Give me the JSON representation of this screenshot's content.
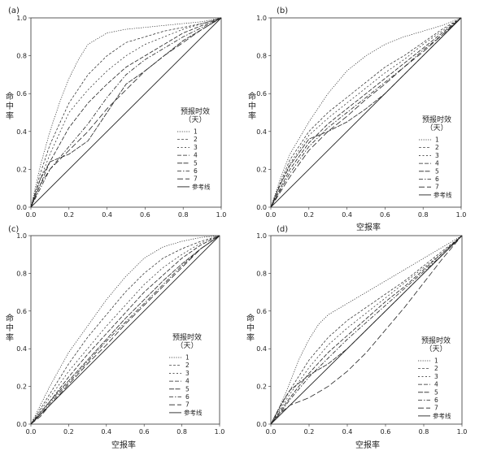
{
  "chart_data": [
    {
      "panel": "(a)",
      "type": "line",
      "xlabel": "",
      "ylabel": "命中率",
      "xlim": [
        0,
        1
      ],
      "ylim": [
        0,
        1
      ],
      "xticks": [
        "0.0",
        "0.2",
        "0.4",
        "0.6",
        "0.8",
        "1.0"
      ],
      "yticks": [
        "0.0",
        "0.2",
        "0.4",
        "0.6",
        "0.8",
        "1.0"
      ],
      "legend_title": "预报时效（天）",
      "series": [
        {
          "name": "1",
          "x": [
            0,
            0.05,
            0.1,
            0.15,
            0.2,
            0.25,
            0.3,
            0.4,
            0.5,
            0.6,
            0.7,
            0.8,
            0.9,
            1.0
          ],
          "y": [
            0,
            0.22,
            0.4,
            0.55,
            0.68,
            0.78,
            0.86,
            0.92,
            0.94,
            0.95,
            0.96,
            0.97,
            0.98,
            1.0
          ]
        },
        {
          "name": "2",
          "x": [
            0,
            0.05,
            0.1,
            0.2,
            0.3,
            0.4,
            0.5,
            0.6,
            0.7,
            0.8,
            0.9,
            1.0
          ],
          "y": [
            0,
            0.18,
            0.33,
            0.55,
            0.7,
            0.8,
            0.87,
            0.9,
            0.93,
            0.95,
            0.97,
            1.0
          ]
        },
        {
          "name": "3",
          "x": [
            0,
            0.05,
            0.1,
            0.2,
            0.3,
            0.4,
            0.5,
            0.6,
            0.7,
            0.8,
            0.9,
            1.0
          ],
          "y": [
            0,
            0.15,
            0.28,
            0.5,
            0.62,
            0.72,
            0.8,
            0.86,
            0.9,
            0.94,
            0.97,
            1.0
          ]
        },
        {
          "name": "4",
          "x": [
            0,
            0.05,
            0.1,
            0.2,
            0.3,
            0.4,
            0.5,
            0.6,
            0.7,
            0.8,
            0.9,
            1.0
          ],
          "y": [
            0,
            0.12,
            0.24,
            0.42,
            0.55,
            0.65,
            0.74,
            0.8,
            0.86,
            0.92,
            0.96,
            1.0
          ]
        },
        {
          "name": "5",
          "x": [
            0,
            0.05,
            0.1,
            0.2,
            0.3,
            0.4,
            0.5,
            0.6,
            0.7,
            0.8,
            0.9,
            1.0
          ],
          "y": [
            0,
            0.15,
            0.24,
            0.28,
            0.35,
            0.5,
            0.65,
            0.72,
            0.8,
            0.88,
            0.94,
            1.0
          ]
        },
        {
          "name": "6",
          "x": [
            0,
            0.05,
            0.1,
            0.2,
            0.3,
            0.4,
            0.5,
            0.6,
            0.7,
            0.8,
            0.9,
            1.0
          ],
          "y": [
            0,
            0.1,
            0.2,
            0.32,
            0.44,
            0.58,
            0.7,
            0.78,
            0.84,
            0.9,
            0.95,
            1.0
          ]
        },
        {
          "name": "7",
          "x": [
            0,
            0.05,
            0.1,
            0.2,
            0.3,
            0.4,
            0.5,
            0.6,
            0.7,
            0.8,
            0.9,
            1.0
          ],
          "y": [
            0,
            0.12,
            0.2,
            0.3,
            0.4,
            0.52,
            0.62,
            0.72,
            0.8,
            0.87,
            0.94,
            1.0
          ]
        },
        {
          "name": "参考线",
          "x": [
            0,
            1
          ],
          "y": [
            0,
            1
          ]
        }
      ]
    },
    {
      "panel": "(b)",
      "type": "line",
      "xlabel": "空报率",
      "ylabel": "命中率",
      "xlim": [
        0,
        1
      ],
      "ylim": [
        0,
        1
      ],
      "xticks": [
        "0.0",
        "0.2",
        "0.4",
        "0.6",
        "0.8",
        "1.0"
      ],
      "yticks": [
        "0.0",
        "0.2",
        "0.4",
        "0.6",
        "0.8",
        "1.0"
      ],
      "legend_title": "预报时效（天）",
      "series": [
        {
          "name": "1",
          "x": [
            0,
            0.05,
            0.1,
            0.2,
            0.3,
            0.4,
            0.5,
            0.6,
            0.7,
            0.8,
            0.9,
            1.0
          ],
          "y": [
            0,
            0.15,
            0.28,
            0.45,
            0.6,
            0.72,
            0.8,
            0.86,
            0.9,
            0.93,
            0.96,
            1.0
          ]
        },
        {
          "name": "2",
          "x": [
            0,
            0.05,
            0.1,
            0.2,
            0.3,
            0.4,
            0.5,
            0.6,
            0.7,
            0.8,
            0.9,
            1.0
          ],
          "y": [
            0,
            0.13,
            0.25,
            0.4,
            0.5,
            0.58,
            0.66,
            0.74,
            0.8,
            0.87,
            0.94,
            1.0
          ]
        },
        {
          "name": "3",
          "x": [
            0,
            0.05,
            0.1,
            0.2,
            0.3,
            0.4,
            0.5,
            0.6,
            0.7,
            0.8,
            0.9,
            1.0
          ],
          "y": [
            0,
            0.12,
            0.23,
            0.38,
            0.47,
            0.55,
            0.63,
            0.71,
            0.78,
            0.86,
            0.93,
            1.0
          ]
        },
        {
          "name": "4",
          "x": [
            0,
            0.05,
            0.1,
            0.2,
            0.3,
            0.4,
            0.5,
            0.6,
            0.7,
            0.8,
            0.9,
            1.0
          ],
          "y": [
            0,
            0.1,
            0.2,
            0.34,
            0.44,
            0.52,
            0.6,
            0.68,
            0.76,
            0.84,
            0.92,
            1.0
          ]
        },
        {
          "name": "5",
          "x": [
            0,
            0.05,
            0.1,
            0.2,
            0.3,
            0.4,
            0.5,
            0.6,
            0.7,
            0.8,
            0.9,
            1.0
          ],
          "y": [
            0,
            0.12,
            0.22,
            0.36,
            0.4,
            0.45,
            0.52,
            0.6,
            0.7,
            0.8,
            0.9,
            1.0
          ]
        },
        {
          "name": "6",
          "x": [
            0,
            0.05,
            0.1,
            0.2,
            0.3,
            0.4,
            0.5,
            0.6,
            0.7,
            0.8,
            0.9,
            1.0
          ],
          "y": [
            0,
            0.09,
            0.18,
            0.32,
            0.42,
            0.5,
            0.58,
            0.66,
            0.74,
            0.83,
            0.91,
            1.0
          ]
        },
        {
          "name": "7",
          "x": [
            0,
            0.05,
            0.1,
            0.2,
            0.3,
            0.4,
            0.5,
            0.6,
            0.7,
            0.8,
            0.9,
            1.0
          ],
          "y": [
            0,
            0.08,
            0.16,
            0.3,
            0.4,
            0.48,
            0.57,
            0.65,
            0.74,
            0.82,
            0.91,
            1.0
          ]
        },
        {
          "name": "参考线",
          "x": [
            0,
            1
          ],
          "y": [
            0,
            1
          ]
        }
      ]
    },
    {
      "panel": "(c)",
      "type": "line",
      "xlabel": "空报率",
      "ylabel": "命中率",
      "xlim": [
        0,
        1
      ],
      "ylim": [
        0,
        1
      ],
      "xticks": [
        "0.0",
        "0.2",
        "0.4",
        "0.6",
        "0.8",
        "1.0"
      ],
      "yticks": [
        "0.0",
        "0.2",
        "0.4",
        "0.6",
        "0.8",
        "1.0"
      ],
      "legend_title": "预报时效（天）",
      "series": [
        {
          "name": "1",
          "x": [
            0,
            0.05,
            0.1,
            0.2,
            0.3,
            0.4,
            0.5,
            0.6,
            0.7,
            0.8,
            0.9,
            1.0
          ],
          "y": [
            0,
            0.1,
            0.2,
            0.38,
            0.52,
            0.66,
            0.78,
            0.88,
            0.94,
            0.97,
            0.99,
            1.0
          ]
        },
        {
          "name": "2",
          "x": [
            0,
            0.05,
            0.1,
            0.2,
            0.3,
            0.4,
            0.5,
            0.6,
            0.7,
            0.8,
            0.9,
            1.0
          ],
          "y": [
            0,
            0.08,
            0.16,
            0.32,
            0.46,
            0.58,
            0.7,
            0.8,
            0.88,
            0.93,
            0.97,
            1.0
          ]
        },
        {
          "name": "3",
          "x": [
            0,
            0.05,
            0.1,
            0.2,
            0.3,
            0.4,
            0.5,
            0.6,
            0.7,
            0.8,
            0.9,
            1.0
          ],
          "y": [
            0,
            0.07,
            0.14,
            0.28,
            0.4,
            0.52,
            0.63,
            0.74,
            0.83,
            0.9,
            0.96,
            1.0
          ]
        },
        {
          "name": "4",
          "x": [
            0,
            0.05,
            0.1,
            0.2,
            0.3,
            0.4,
            0.5,
            0.6,
            0.7,
            0.8,
            0.9,
            1.0
          ],
          "y": [
            0,
            0.06,
            0.12,
            0.25,
            0.37,
            0.48,
            0.59,
            0.7,
            0.79,
            0.88,
            0.95,
            1.0
          ]
        },
        {
          "name": "5",
          "x": [
            0,
            0.05,
            0.1,
            0.2,
            0.3,
            0.4,
            0.5,
            0.6,
            0.7,
            0.8,
            0.9,
            1.0
          ],
          "y": [
            0,
            0.06,
            0.12,
            0.23,
            0.34,
            0.45,
            0.56,
            0.66,
            0.76,
            0.85,
            0.93,
            1.0
          ]
        },
        {
          "name": "6",
          "x": [
            0,
            0.05,
            0.1,
            0.2,
            0.3,
            0.4,
            0.5,
            0.6,
            0.7,
            0.8,
            0.9,
            1.0
          ],
          "y": [
            0,
            0.05,
            0.11,
            0.22,
            0.33,
            0.44,
            0.54,
            0.64,
            0.74,
            0.84,
            0.93,
            1.0
          ]
        },
        {
          "name": "7",
          "x": [
            0,
            0.05,
            0.1,
            0.2,
            0.3,
            0.4,
            0.5,
            0.6,
            0.7,
            0.8,
            0.9,
            1.0
          ],
          "y": [
            0,
            0.04,
            0.1,
            0.21,
            0.32,
            0.42,
            0.53,
            0.63,
            0.73,
            0.83,
            0.93,
            1.0
          ]
        },
        {
          "name": "参考线",
          "x": [
            0,
            1
          ],
          "y": [
            0,
            1
          ]
        }
      ]
    },
    {
      "panel": "(d)",
      "type": "line",
      "xlabel": "空报率",
      "ylabel": "命中率",
      "xlim": [
        0,
        1
      ],
      "ylim": [
        0,
        1
      ],
      "xticks": [
        "0.0",
        "0.2",
        "0.4",
        "0.6",
        "0.8",
        "1.0"
      ],
      "yticks": [
        "0.0",
        "0.2",
        "0.4",
        "0.6",
        "0.8",
        "1.0"
      ],
      "legend_title": "预报时效（天）",
      "series": [
        {
          "name": "1",
          "x": [
            0,
            0.05,
            0.1,
            0.15,
            0.2,
            0.25,
            0.3,
            0.4,
            0.5,
            0.6,
            0.7,
            0.8,
            0.9,
            1.0
          ],
          "y": [
            0,
            0.1,
            0.22,
            0.35,
            0.45,
            0.53,
            0.58,
            0.64,
            0.7,
            0.76,
            0.82,
            0.88,
            0.94,
            1.0
          ]
        },
        {
          "name": "2",
          "x": [
            0,
            0.05,
            0.1,
            0.2,
            0.3,
            0.4,
            0.5,
            0.6,
            0.7,
            0.8,
            0.9,
            1.0
          ],
          "y": [
            0,
            0.09,
            0.18,
            0.34,
            0.46,
            0.55,
            0.62,
            0.69,
            0.76,
            0.84,
            0.92,
            1.0
          ]
        },
        {
          "name": "3",
          "x": [
            0,
            0.05,
            0.1,
            0.2,
            0.3,
            0.4,
            0.5,
            0.6,
            0.7,
            0.8,
            0.9,
            1.0
          ],
          "y": [
            0,
            0.08,
            0.16,
            0.3,
            0.42,
            0.51,
            0.59,
            0.67,
            0.75,
            0.83,
            0.91,
            1.0
          ]
        },
        {
          "name": "4",
          "x": [
            0,
            0.05,
            0.1,
            0.2,
            0.3,
            0.4,
            0.5,
            0.6,
            0.7,
            0.8,
            0.9,
            1.0
          ],
          "y": [
            0,
            0.07,
            0.14,
            0.27,
            0.38,
            0.47,
            0.56,
            0.65,
            0.73,
            0.82,
            0.91,
            1.0
          ]
        },
        {
          "name": "5",
          "x": [
            0,
            0.05,
            0.1,
            0.2,
            0.3,
            0.4,
            0.5,
            0.6,
            0.7,
            0.8,
            0.9,
            1.0
          ],
          "y": [
            0,
            0.1,
            0.18,
            0.26,
            0.32,
            0.4,
            0.5,
            0.6,
            0.7,
            0.8,
            0.9,
            1.0
          ]
        },
        {
          "name": "6",
          "x": [
            0,
            0.05,
            0.1,
            0.2,
            0.3,
            0.4,
            0.5,
            0.6,
            0.7,
            0.8,
            0.9,
            1.0
          ],
          "y": [
            0,
            0.06,
            0.13,
            0.25,
            0.35,
            0.45,
            0.54,
            0.63,
            0.72,
            0.81,
            0.9,
            1.0
          ]
        },
        {
          "name": "7",
          "x": [
            0,
            0.05,
            0.1,
            0.2,
            0.3,
            0.4,
            0.5,
            0.6,
            0.7,
            0.8,
            0.9,
            1.0
          ],
          "y": [
            0,
            0.06,
            0.1,
            0.14,
            0.2,
            0.28,
            0.38,
            0.5,
            0.62,
            0.75,
            0.88,
            1.0
          ]
        },
        {
          "name": "参考线",
          "x": [
            0,
            1
          ],
          "y": [
            0,
            1
          ]
        }
      ]
    }
  ]
}
